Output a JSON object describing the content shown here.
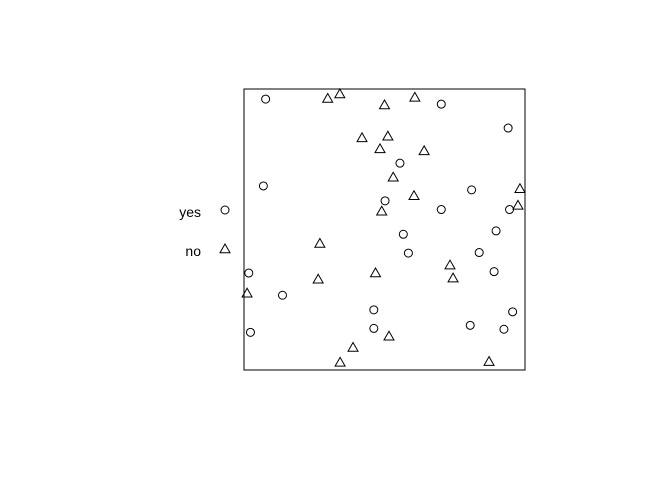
{
  "chart_data": {
    "type": "scatter",
    "title": "",
    "xlabel": "",
    "ylabel": "",
    "xlim": [
      0,
      1
    ],
    "ylim": [
      0,
      1
    ],
    "grid": false,
    "legend": {
      "placement": "left",
      "entries": [
        "yes",
        "no"
      ]
    },
    "series": [
      {
        "name": "yes",
        "marker": "circle",
        "points": [
          [
            0.077,
            0.964
          ],
          [
            0.702,
            0.946
          ],
          [
            0.94,
            0.861
          ],
          [
            0.555,
            0.736
          ],
          [
            0.069,
            0.655
          ],
          [
            0.81,
            0.641
          ],
          [
            0.502,
            0.602
          ],
          [
            0.702,
            0.571
          ],
          [
            0.945,
            0.571
          ],
          [
            0.567,
            0.483
          ],
          [
            0.897,
            0.495
          ],
          [
            0.585,
            0.416
          ],
          [
            0.837,
            0.418
          ],
          [
            0.017,
            0.345
          ],
          [
            0.89,
            0.35
          ],
          [
            0.137,
            0.266
          ],
          [
            0.462,
            0.214
          ],
          [
            0.956,
            0.207
          ],
          [
            0.805,
            0.159
          ],
          [
            0.462,
            0.148
          ],
          [
            0.925,
            0.145
          ],
          [
            0.023,
            0.134
          ]
        ]
      },
      {
        "name": "no",
        "marker": "triangle",
        "points": [
          [
            0.341,
            0.982
          ],
          [
            0.298,
            0.966
          ],
          [
            0.608,
            0.97
          ],
          [
            0.5,
            0.943
          ],
          [
            0.42,
            0.826
          ],
          [
            0.512,
            0.832
          ],
          [
            0.484,
            0.787
          ],
          [
            0.641,
            0.78
          ],
          [
            0.531,
            0.686
          ],
          [
            0.982,
            0.645
          ],
          [
            0.605,
            0.62
          ],
          [
            0.49,
            0.565
          ],
          [
            0.975,
            0.586
          ],
          [
            0.27,
            0.45
          ],
          [
            0.733,
            0.373
          ],
          [
            0.468,
            0.345
          ],
          [
            0.744,
            0.327
          ],
          [
            0.264,
            0.323
          ],
          [
            0.011,
            0.273
          ],
          [
            0.516,
            0.12
          ],
          [
            0.388,
            0.08
          ],
          [
            0.342,
            0.027
          ],
          [
            0.872,
            0.03
          ]
        ]
      }
    ]
  }
}
